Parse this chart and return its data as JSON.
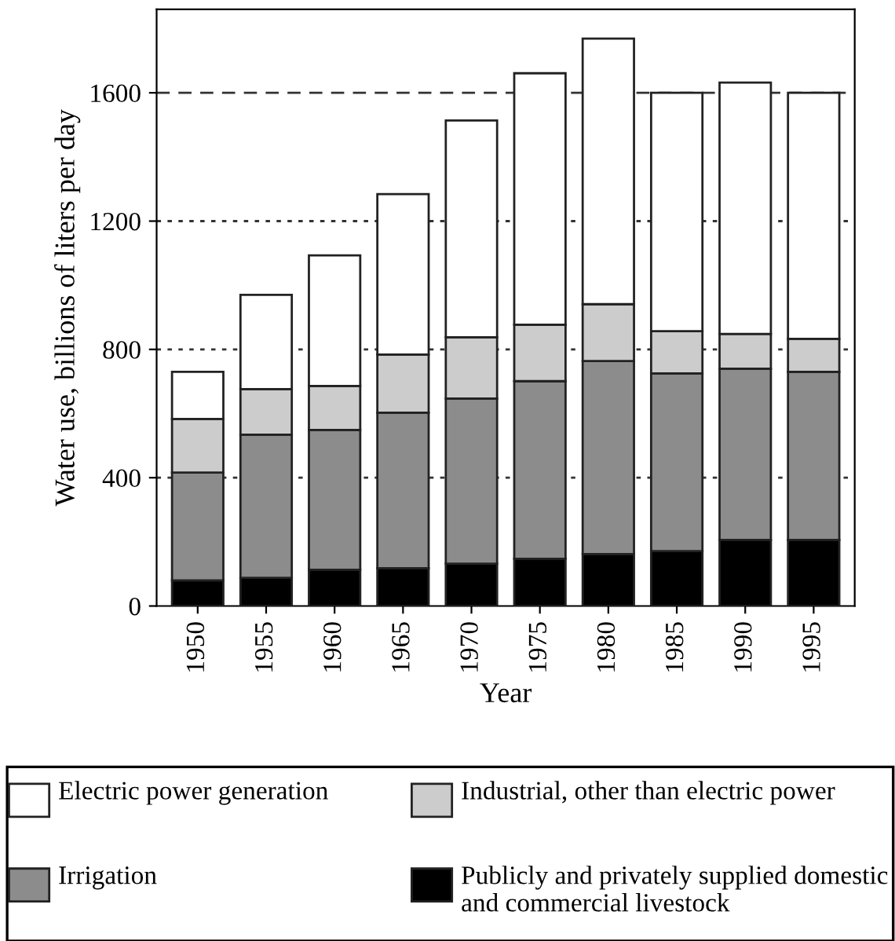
{
  "chart_data": {
    "type": "bar",
    "stacked": true,
    "xlabel": "Year",
    "ylabel": "Water use, billions of liters per day",
    "categories": [
      "1950",
      "1955",
      "1960",
      "1965",
      "1970",
      "1975",
      "1980",
      "1985",
      "1990",
      "1995"
    ],
    "series": [
      {
        "name": "Publicly and privately supplied domestic and commercial livestock",
        "color": "#000000",
        "values": [
          80,
          88,
          113,
          118,
          132,
          147,
          162,
          171,
          206,
          206
        ]
      },
      {
        "name": "Irrigation",
        "color": "#8c8c8c",
        "values": [
          336,
          446,
          436,
          485,
          515,
          554,
          602,
          554,
          534,
          524
        ]
      },
      {
        "name": "Industrial, other than electric power",
        "color": "#cccccc",
        "values": [
          167,
          142,
          137,
          181,
          191,
          176,
          177,
          132,
          108,
          103
        ]
      },
      {
        "name": "Electric power generation",
        "color": "#ffffff",
        "values": [
          147,
          294,
          407,
          500,
          676,
          784,
          828,
          743,
          784,
          767
        ]
      }
    ],
    "ylim": [
      0,
      1860
    ],
    "yticks": [
      0,
      400,
      800,
      1200,
      1600
    ],
    "grid": "y",
    "legend": "bottom"
  }
}
